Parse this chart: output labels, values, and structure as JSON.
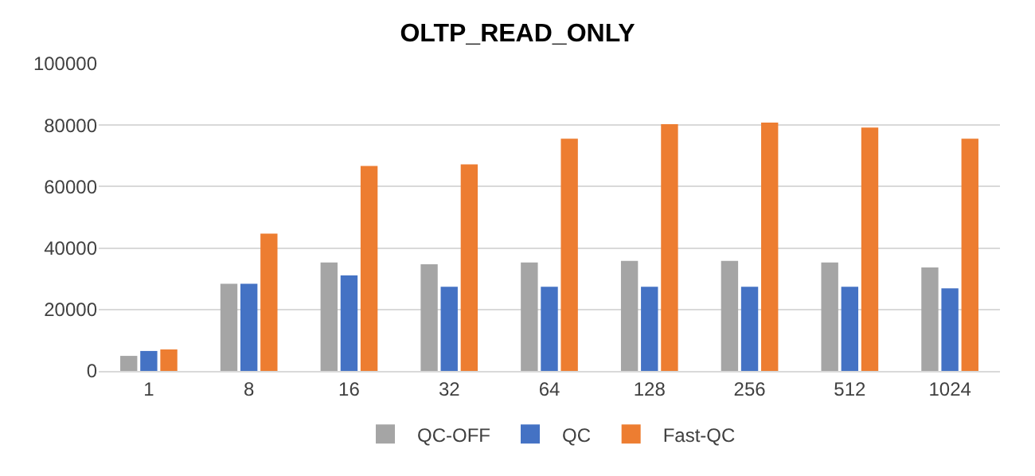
{
  "chart_data": {
    "type": "bar",
    "title": "OLTP_READ_ONLY",
    "categories": [
      "1",
      "8",
      "16",
      "32",
      "64",
      "128",
      "256",
      "512",
      "1024"
    ],
    "series": [
      {
        "name": "QC-OFF",
        "color": "#a5a5a5",
        "values": [
          4900,
          28400,
          35300,
          34700,
          35300,
          35800,
          35800,
          35300,
          33700
        ]
      },
      {
        "name": "QC",
        "color": "#4472c4",
        "values": [
          6500,
          28400,
          31100,
          27400,
          27400,
          27400,
          27400,
          27400,
          26900
        ]
      },
      {
        "name": "Fast-QC",
        "color": "#ed7d31",
        "values": [
          7000,
          44700,
          66700,
          67200,
          75600,
          80300,
          80800,
          79200,
          75600
        ]
      }
    ],
    "ylim": [
      0,
      100000
    ],
    "yticks": [
      0,
      20000,
      40000,
      60000,
      80000,
      100000
    ],
    "grid": "y",
    "legend": "bottom"
  }
}
